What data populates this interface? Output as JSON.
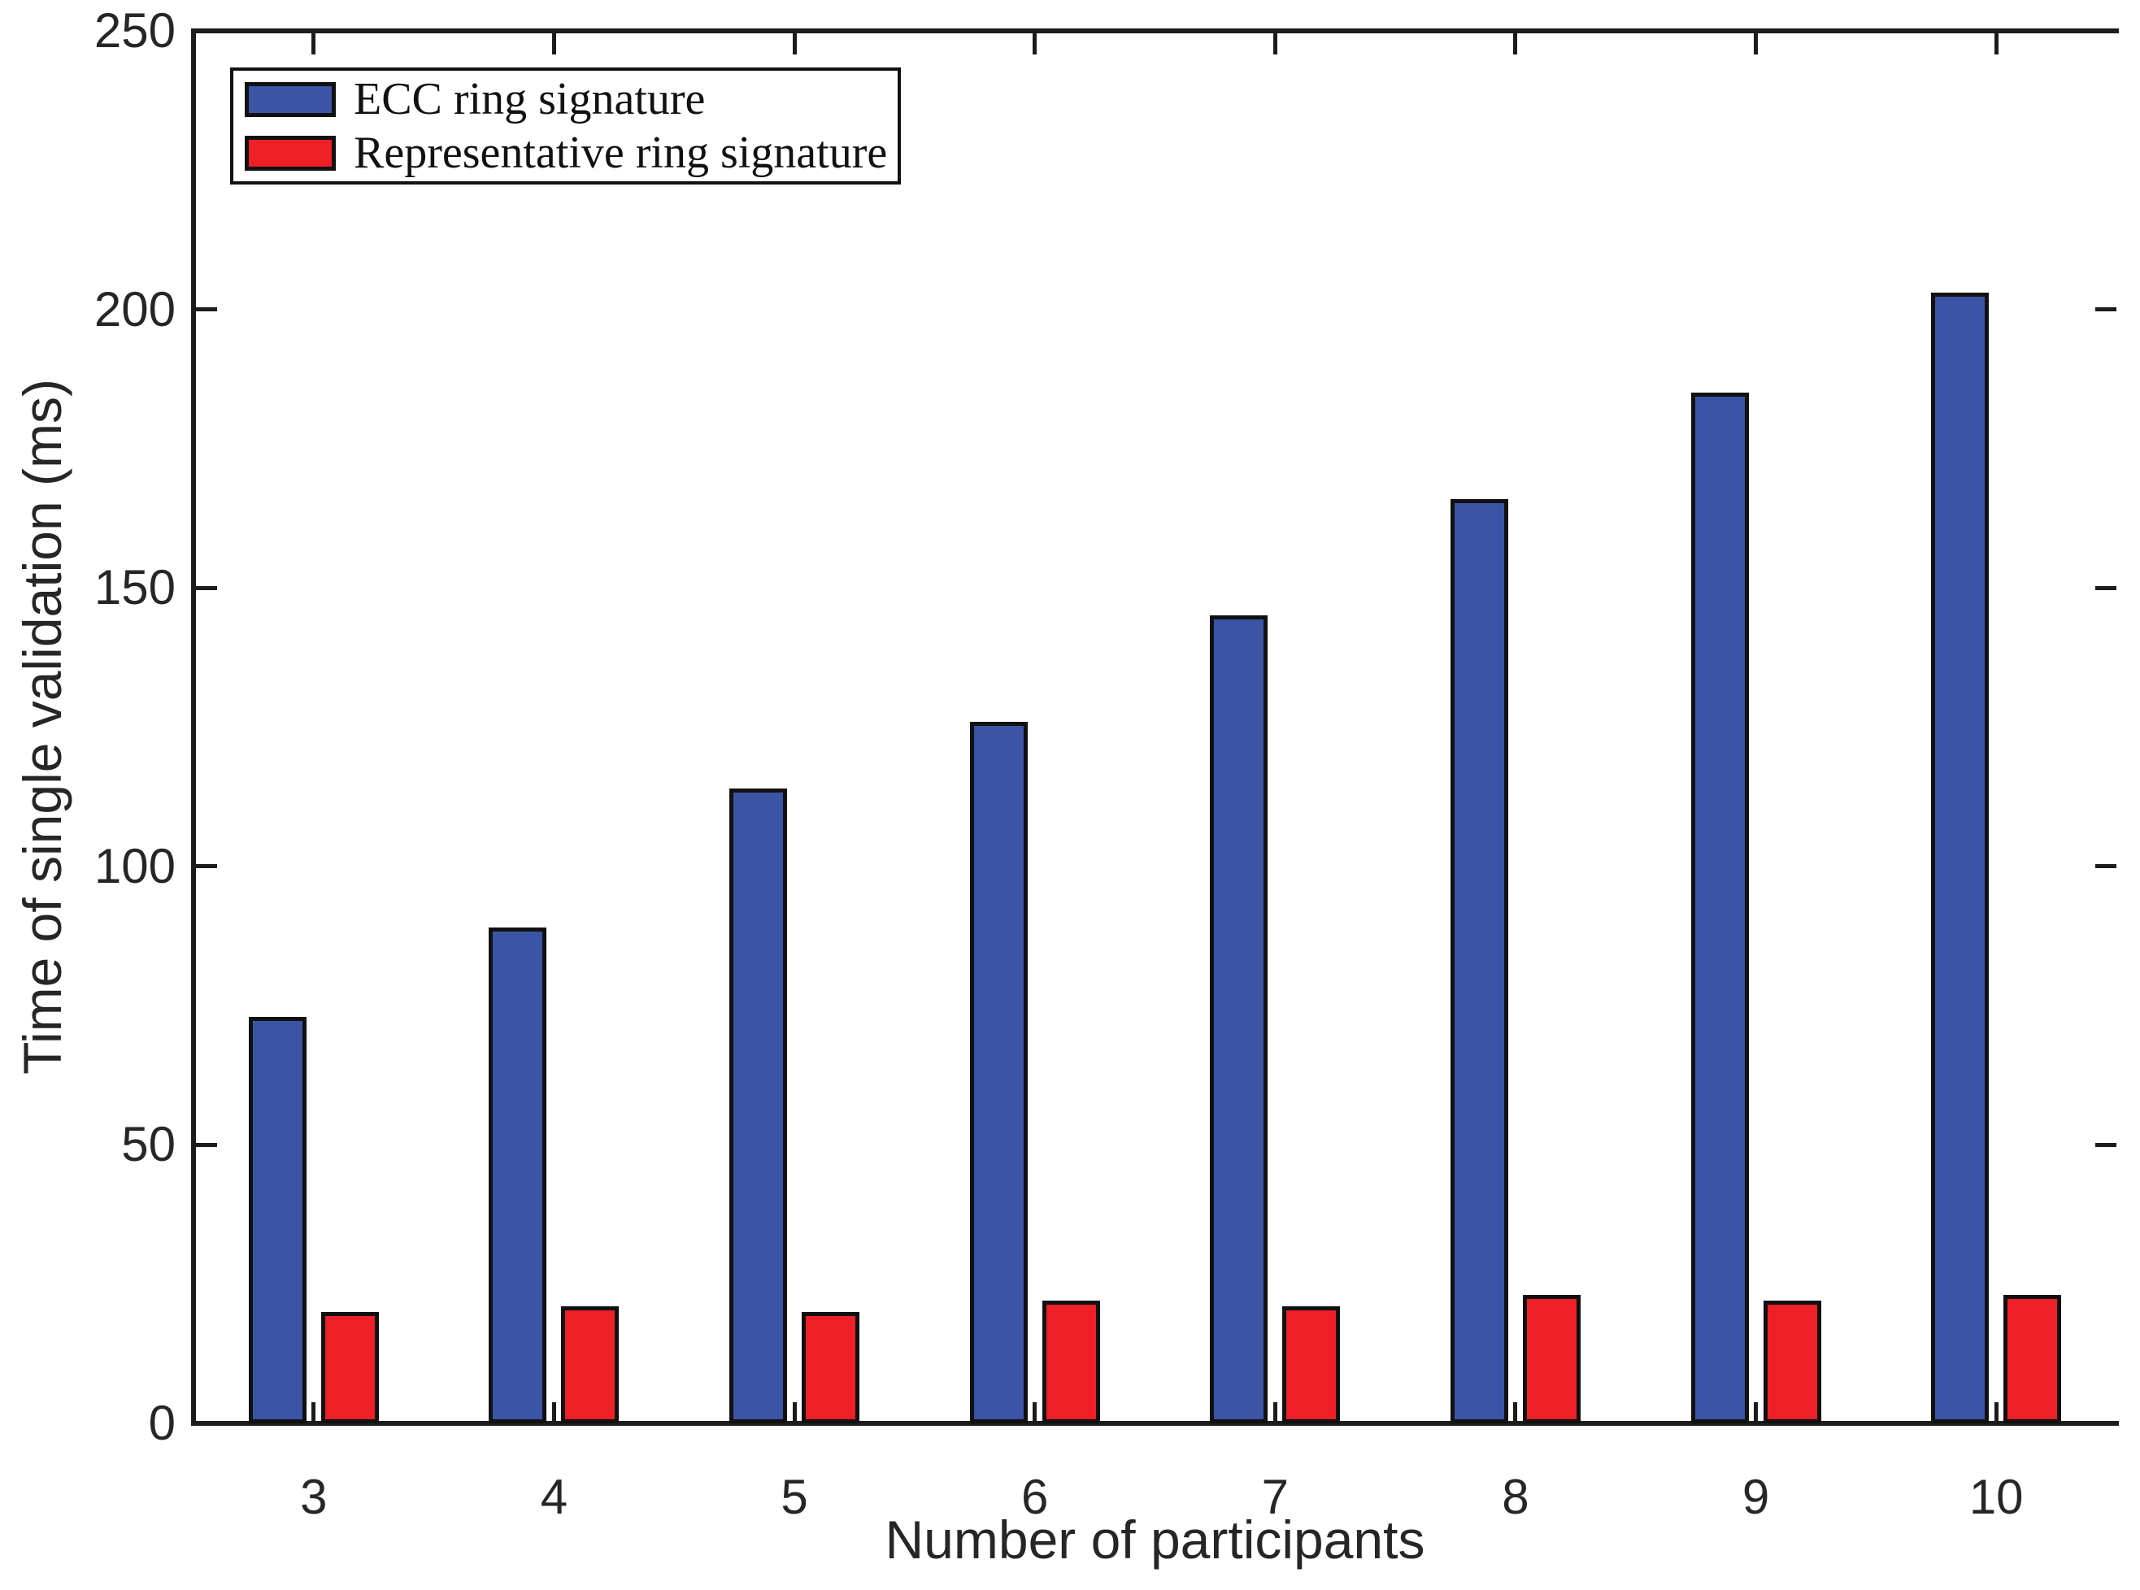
{
  "chart_data": {
    "type": "bar",
    "title": "",
    "xlabel": "Number of participants",
    "ylabel": "Time of single validation (ms)",
    "categories": [
      "3",
      "4",
      "5",
      "6",
      "7",
      "8",
      "9",
      "10"
    ],
    "series": [
      {
        "name": "ECC ring signature",
        "color": "#3b54a5",
        "values": [
          73,
          89,
          114,
          126,
          145,
          166,
          185,
          203
        ]
      },
      {
        "name": "Representative ring signature",
        "color": "#ee1f26",
        "values": [
          20,
          21,
          20,
          22,
          21,
          23,
          22,
          23
        ]
      }
    ],
    "ylim": [
      0,
      250
    ],
    "y_ticks": [
      "0",
      "50",
      "100",
      "150",
      "200",
      "250"
    ],
    "grid": false,
    "legend_position": "top-left",
    "axis_color": "#1c1c1c",
    "background": "#ffffff"
  }
}
